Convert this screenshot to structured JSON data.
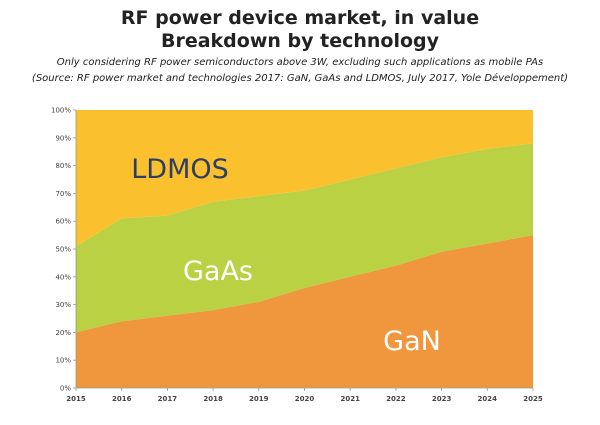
{
  "chart_data": {
    "type": "area",
    "stacked": true,
    "normalized": true,
    "title": "RF power device market, in value",
    "subtitle": "Breakdown by technology",
    "notes": [
      "Only considering RF power semiconductors above 3W, excluding such applications as mobile PAs",
      "(Source: RF power market and technologies 2017: GaN, GaAs and LDMOS, July 2017, Yole Développement)"
    ],
    "x": [
      "2015",
      "2016",
      "2017",
      "2018",
      "2019",
      "2020",
      "2021",
      "2022",
      "2023",
      "2024",
      "2025"
    ],
    "yticks": [
      "0%",
      "10%",
      "20%",
      "30%",
      "40%",
      "50%",
      "60%",
      "70%",
      "80%",
      "90%",
      "100%"
    ],
    "ylim": [
      0,
      100
    ],
    "grid": false,
    "series": [
      {
        "name": "GaN",
        "values": [
          20,
          24,
          26,
          28,
          31,
          36,
          40,
          44,
          49,
          52,
          55
        ],
        "color": "#f0963c",
        "label_color": "#ffffff"
      },
      {
        "name": "GaAs",
        "values": [
          31,
          37,
          36,
          39,
          38,
          35,
          35,
          35,
          34,
          34,
          33
        ],
        "color": "#b9d143",
        "label_color": "#ffffff"
      },
      {
        "name": "LDMOS",
        "values": [
          49,
          39,
          38,
          33,
          31,
          29,
          25,
          21,
          17,
          14,
          12
        ],
        "color": "#fbc02d",
        "label_color": "#2c3e63"
      }
    ]
  }
}
